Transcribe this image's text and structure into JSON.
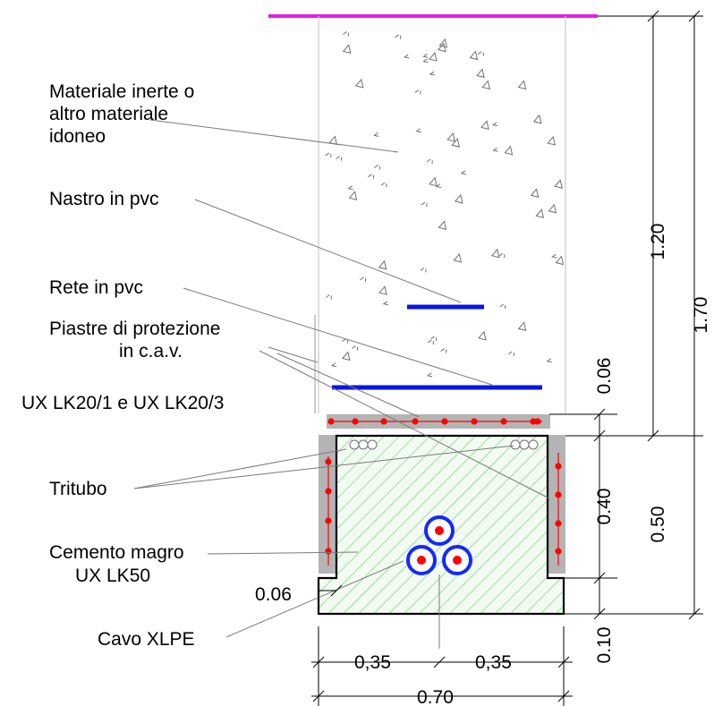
{
  "labels": {
    "materiale_inerte": [
      "Materiale inerte o",
      "altro materiale",
      "idoneo"
    ],
    "nastro": "Nastro in pvc",
    "rete": "Rete in pvc",
    "piastre": [
      "Piastre di protezione",
      "in c.a.v.",
      "UX LK20/1 e UX LK20/3"
    ],
    "tritubo": "Tritubo",
    "cemento": [
      "Cemento magro",
      "UX LK50"
    ],
    "cavo": "Cavo XLPE"
  },
  "dimensions": {
    "depth_fill": "1.20",
    "depth_total": "1.70",
    "plate_thickness_top": "0.06",
    "inner_height": "0.40",
    "box_height": "0.50",
    "bottom_thickness": "0.10",
    "side_offset": "0.06",
    "half_width_left": "0,35",
    "half_width_right": "0,35",
    "total_width": "0.70"
  },
  "colors": {
    "ground_line": "#e61ee6",
    "pvc": "#0a14e6",
    "rebar": "#ff0000",
    "hatch": "#5fc85f",
    "concrete_fill": "#f0fbf0",
    "plate": "#b4b4b4",
    "cable_ring": "#1428ff"
  }
}
